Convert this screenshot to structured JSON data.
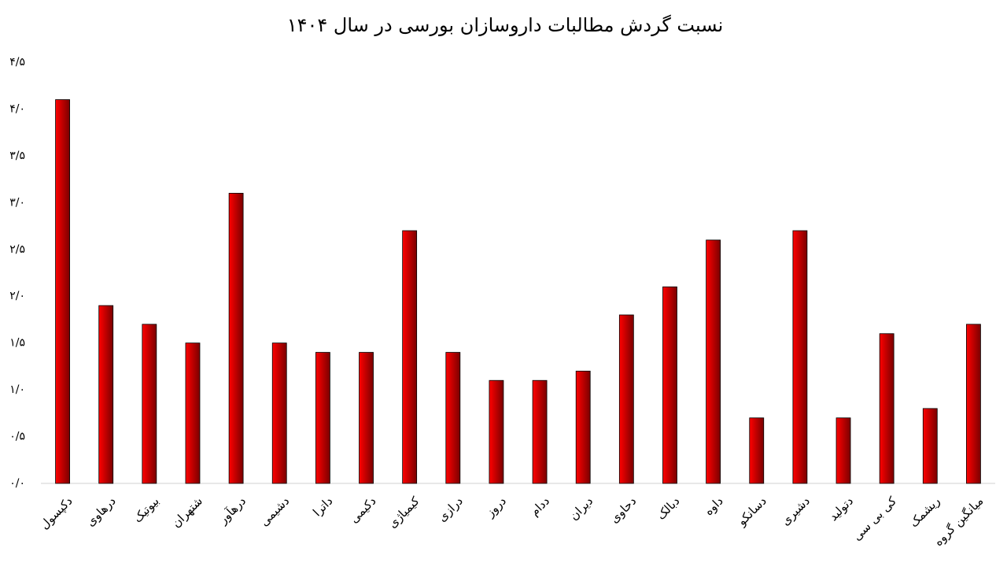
{
  "chart_data": {
    "type": "bar",
    "title": "نسبت گردش مطالبات داروسازان بورسی در سال ۱۴۰۴",
    "categories": [
      "دکپسول",
      "درهاوی",
      "بیوتیک",
      "شتهران",
      "درهآور",
      "دشیمی",
      "داترا",
      "دکیمی",
      "کیمیاژی",
      "درازی",
      "دروز",
      "ددام",
      "دیران",
      "دحاوی",
      "دبالک",
      "داوه",
      "دسانکو",
      "دشیری",
      "دتولید",
      "کی بی سی",
      "ریشمک",
      "میانگین گروه"
    ],
    "values": [
      4.1,
      1.9,
      1.7,
      1.5,
      3.1,
      1.5,
      1.4,
      1.4,
      2.7,
      1.4,
      1.1,
      1.1,
      1.2,
      1.8,
      2.1,
      2.6,
      0.7,
      2.7,
      0.7,
      1.6,
      0.8,
      1.7
    ],
    "color": "#ff0000",
    "ylim": [
      0,
      4.5
    ],
    "yticks": [
      {
        "value": 0,
        "label": "۰/۰"
      },
      {
        "value": 0.5,
        "label": "۰/۵"
      },
      {
        "value": 1,
        "label": "۱/۰"
      },
      {
        "value": 1.5,
        "label": "۱/۵"
      },
      {
        "value": 2,
        "label": "۲/۰"
      },
      {
        "value": 2.5,
        "label": "۲/۵"
      },
      {
        "value": 3,
        "label": "۳/۰"
      },
      {
        "value": 3.5,
        "label": "۳/۵"
      },
      {
        "value": 4,
        "label": "۴/۰"
      },
      {
        "value": 4.5,
        "label": "۴/۵"
      }
    ],
    "grid": false
  }
}
